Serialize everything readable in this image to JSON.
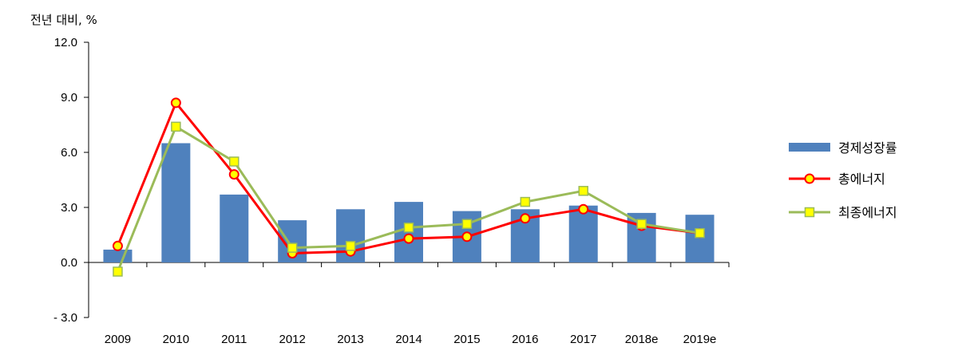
{
  "chart_data": {
    "type": "bar",
    "ylabel": "전년 대비, %",
    "categories": [
      "2009",
      "2010",
      "2011",
      "2012",
      "2013",
      "2014",
      "2015",
      "2016",
      "2017",
      "2018e",
      "2019e"
    ],
    "ylim": [
      -3.0,
      12.0
    ],
    "yticks": [
      "- 3.0",
      "0.0",
      "3.0",
      "6.0",
      "9.0",
      "12.0"
    ],
    "ytick_values": [
      -3.0,
      0.0,
      3.0,
      6.0,
      9.0,
      12.0
    ],
    "grid": false,
    "legend_position": "right",
    "series": [
      {
        "name": "경제성장률",
        "type": "bar",
        "color": "#4F81BD",
        "values": [
          0.7,
          6.5,
          3.7,
          2.3,
          2.9,
          3.3,
          2.8,
          2.9,
          3.1,
          2.7,
          2.6
        ]
      },
      {
        "name": "총에너지",
        "type": "line",
        "color": "#FF0000",
        "marker": "circle",
        "marker_fill": "#FFFF00",
        "values": [
          0.9,
          8.7,
          4.8,
          0.5,
          0.6,
          1.3,
          1.4,
          2.4,
          2.9,
          2.0,
          1.6
        ]
      },
      {
        "name": "최종에너지",
        "type": "line",
        "color": "#9BBB59",
        "marker": "square",
        "marker_fill": "#FFFF00",
        "values": [
          -0.5,
          7.4,
          5.5,
          0.8,
          0.9,
          1.9,
          2.1,
          3.3,
          3.9,
          2.1,
          1.6
        ]
      }
    ]
  }
}
